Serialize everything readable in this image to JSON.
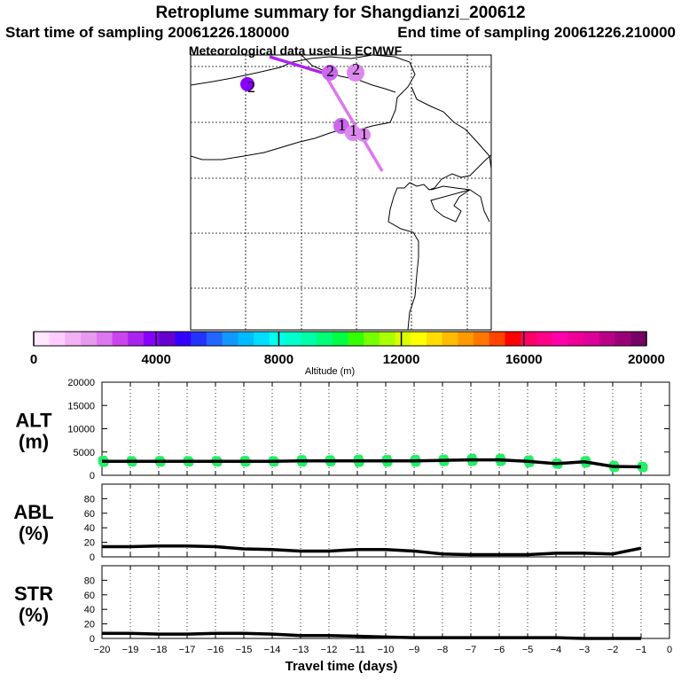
{
  "header": {
    "title": "Retroplume summary for Shangdianzi_200612",
    "start_sampling": "Start time of sampling 20061226.180000",
    "end_sampling": "End time of sampling 20061226.210000",
    "met_data": "Meteorological data used is ECMWF"
  },
  "map": {
    "points": [
      {
        "label": "2",
        "color": "#8800ff"
      },
      {
        "label": "2",
        "color": "#cc66ee"
      },
      {
        "label": "2",
        "color": "#dd88ee"
      },
      {
        "label": "1",
        "color": "#cc66ee"
      },
      {
        "label": "1",
        "color": "#dd88ee"
      },
      {
        "label": "1",
        "color": "#dd88ee"
      }
    ]
  },
  "colorbar": {
    "title": "Altitude (m)",
    "min": 0,
    "max": 20000,
    "tick_labels": [
      "0",
      "4000",
      "8000",
      "12000",
      "16000",
      "20000"
    ],
    "colors": [
      "#ffe6ff",
      "#ffccff",
      "#f2b0f5",
      "#e699ee",
      "#dd77ee",
      "#cc44ee",
      "#aa22ee",
      "#8800ff",
      "#6600cc",
      "#3300ff",
      "#2233ff",
      "#2266ff",
      "#1199ff",
      "#00bbff",
      "#00ddff",
      "#00ffee",
      "#00ffcc",
      "#00ffaa",
      "#00ff77",
      "#00ff44",
      "#33ff00",
      "#77ff00",
      "#aaff00",
      "#ddff00",
      "#ffff00",
      "#ffdd00",
      "#ffbb00",
      "#ff9900",
      "#ff7700",
      "#ff4400",
      "#ff0000",
      "#ff0066",
      "#ff0088",
      "#ff00aa",
      "#ee0099",
      "#dd0099",
      "#bb0088",
      "#990077",
      "#770066"
    ]
  },
  "chart_data": [
    {
      "type": "line",
      "panel": "ALT",
      "ylabel": "ALT",
      "yunit": "(m)",
      "ylim": [
        0,
        20000
      ],
      "yticks": [
        "20000",
        "15000",
        "10000",
        "5000",
        "0"
      ],
      "xlim": [
        -20,
        0
      ],
      "x": [
        -20,
        -19,
        -18,
        -17,
        -16,
        -15,
        -14,
        -13,
        -12,
        -11,
        -10,
        -9,
        -8,
        -7,
        -6,
        -5,
        -4,
        -3,
        -2,
        -1
      ],
      "median": [
        3000,
        3000,
        3000,
        3000,
        3000,
        3000,
        3000,
        3100,
        3100,
        3100,
        3100,
        3100,
        3200,
        3300,
        3300,
        3000,
        2500,
        2900,
        1900,
        1800
      ],
      "spread": [
        1200,
        1000,
        1100,
        1000,
        1000,
        1100,
        1000,
        1300,
        1200,
        1500,
        1400,
        1400,
        1300,
        1500,
        1500,
        1400,
        1000,
        1300,
        1200,
        1000
      ]
    },
    {
      "type": "line",
      "panel": "ABL",
      "ylabel": "ABL",
      "yunit": "(%)",
      "ylim": [
        0,
        100
      ],
      "yticks": [
        "80",
        "60",
        "40",
        "20",
        "0"
      ],
      "xlim": [
        -20,
        0
      ],
      "x": [
        -20,
        -19,
        -18,
        -17,
        -16,
        -15,
        -14,
        -13,
        -12,
        -11,
        -10,
        -9,
        -8,
        -7,
        -6,
        -5,
        -4,
        -3,
        -2,
        -1
      ],
      "values": [
        14,
        14,
        15,
        15,
        14,
        11,
        10,
        8,
        8,
        10,
        10,
        8,
        4,
        3,
        3,
        3,
        5,
        5,
        4,
        12
      ]
    },
    {
      "type": "line",
      "panel": "STR",
      "ylabel": "STR",
      "yunit": "(%)",
      "ylim": [
        0,
        100
      ],
      "yticks": [
        "80",
        "60",
        "40",
        "20",
        "0"
      ],
      "xlim": [
        -20,
        0
      ],
      "x": [
        -20,
        -19,
        -18,
        -17,
        -16,
        -15,
        -14,
        -13,
        -12,
        -11,
        -10,
        -9,
        -8,
        -7,
        -6,
        -5,
        -4,
        -3,
        -2,
        -1
      ],
      "values": [
        7,
        7,
        6,
        6,
        7,
        7,
        6,
        4,
        4,
        3,
        2,
        1,
        1,
        1,
        1,
        1,
        1,
        0,
        0,
        0
      ],
      "xlabel": "Travel time (days)",
      "xtick_labels": [
        "−20",
        "−19",
        "−18",
        "−17",
        "−16",
        "−15",
        "−14",
        "−13",
        "−12",
        "−11",
        "−10",
        "−9",
        "−8",
        "−7",
        "−6",
        "−5",
        "−4",
        "−3",
        "−2",
        "−1",
        "0"
      ]
    }
  ]
}
